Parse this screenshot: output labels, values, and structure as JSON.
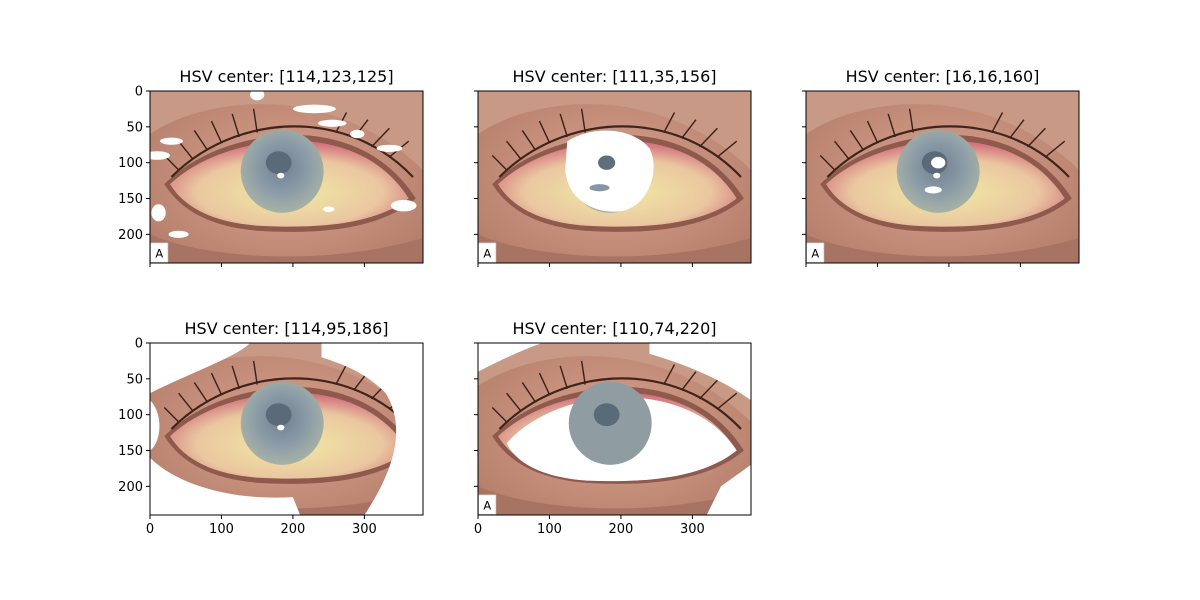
{
  "figure": {
    "background": "#ffffff",
    "layout": "2x3 grid, 5 panels, shared axes"
  },
  "chart_data": [
    {
      "type": "image",
      "title": "HSV center: [114,123,125]",
      "xlim": [
        0,
        382
      ],
      "ylim": [
        240,
        0
      ],
      "xticks": [
        "0",
        "100",
        "200",
        "300"
      ],
      "yticks": [
        "0",
        "50",
        "100",
        "150",
        "200"
      ],
      "show_xtick_labels": false,
      "show_ytick_labels": true,
      "masked_region": "sparse white specks around upper eyelid and corners",
      "center_hsv": [
        114,
        123,
        125
      ]
    },
    {
      "type": "image",
      "title": "HSV center: [111,35,156]",
      "xlim": [
        0,
        382
      ],
      "ylim": [
        240,
        0
      ],
      "xticks": [
        "0",
        "100",
        "200",
        "300"
      ],
      "yticks": [
        "0",
        "50",
        "100",
        "150",
        "200"
      ],
      "show_xtick_labels": false,
      "show_ytick_labels": false,
      "masked_region": "white region over iris area",
      "center_hsv": [
        111,
        35,
        156
      ]
    },
    {
      "type": "image",
      "title": "HSV center: [16,16,160]",
      "xlim": [
        0,
        382
      ],
      "ylim": [
        240,
        0
      ],
      "xticks": [
        "0",
        "100",
        "200",
        "300"
      ],
      "yticks": [
        "0",
        "50",
        "100",
        "150",
        "200"
      ],
      "show_xtick_labels": false,
      "show_ytick_labels": false,
      "masked_region": "small white spots at pupil",
      "center_hsv": [
        16,
        16,
        160
      ]
    },
    {
      "type": "image",
      "title": "HSV center: [114,95,186]",
      "xlim": [
        0,
        382
      ],
      "ylim": [
        240,
        0
      ],
      "xticks": [
        "0",
        "100",
        "200",
        "300"
      ],
      "yticks": [
        "0",
        "50",
        "100",
        "150",
        "200"
      ],
      "show_xtick_labels": true,
      "show_ytick_labels": true,
      "masked_region": "large white region over skin surrounding the eye",
      "center_hsv": [
        114,
        95,
        186
      ]
    },
    {
      "type": "image",
      "title": "HSV center: [110,74,220]",
      "xlim": [
        0,
        382
      ],
      "ylim": [
        240,
        0
      ],
      "xticks": [
        "0",
        "100",
        "200",
        "300"
      ],
      "yticks": [
        "0",
        "50",
        "100",
        "150",
        "200"
      ],
      "show_xtick_labels": true,
      "show_ytick_labels": false,
      "masked_region": "white region over sclera and much of the skin",
      "center_hsv": [
        110,
        74,
        220
      ]
    }
  ]
}
